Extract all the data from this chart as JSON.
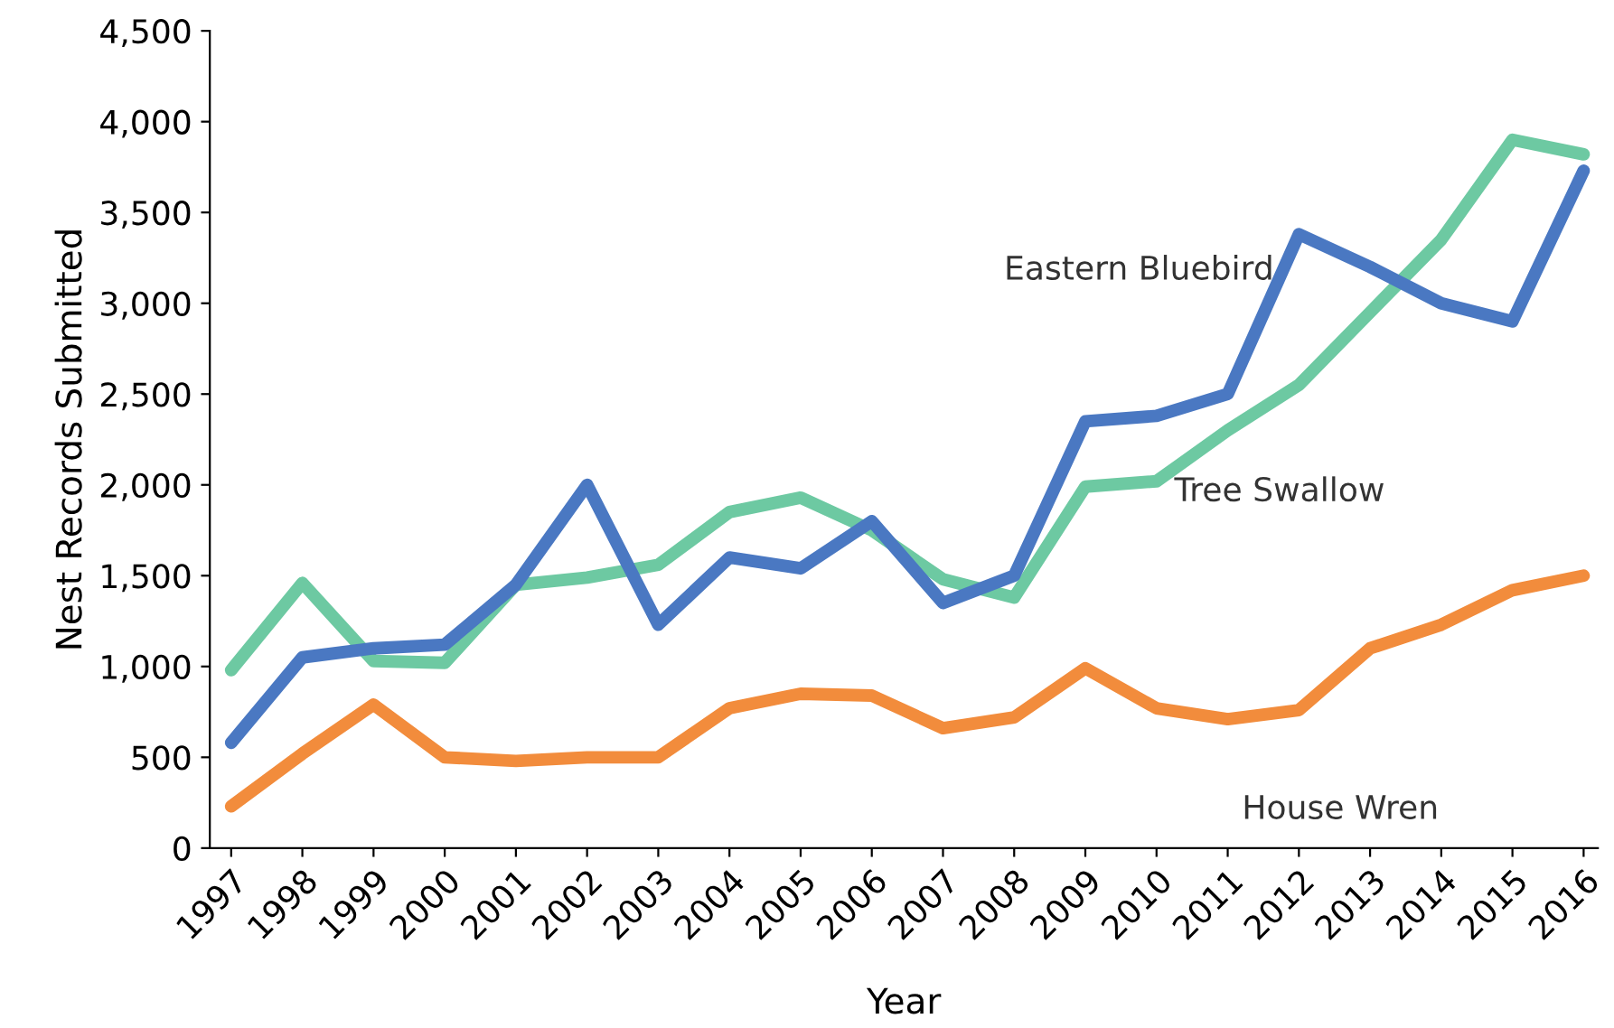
{
  "chart_data": {
    "type": "line",
    "xlabel": "Year",
    "ylabel": "Nest Records Submitted",
    "categories": [
      "1997",
      "1998",
      "1999",
      "2000",
      "2001",
      "2002",
      "2003",
      "2004",
      "2005",
      "2006",
      "2007",
      "2008",
      "2009",
      "2010",
      "2011",
      "2012",
      "2013",
      "2014",
      "2015",
      "2016"
    ],
    "ylim": [
      0,
      4500
    ],
    "yticks": [
      0,
      {
        "value": 500,
        "label": "500"
      },
      {
        "value": 1000,
        "label": "1,000"
      },
      {
        "value": 1500,
        "label": "1,500"
      },
      {
        "value": 2000,
        "label": "2,000"
      },
      {
        "value": 2500,
        "label": "2,500"
      },
      {
        "value": 3000,
        "label": "3,000"
      },
      {
        "value": 3500,
        "label": "3,500"
      },
      {
        "value": 4000,
        "label": "4,000"
      },
      {
        "value": 4500,
        "label": "4,500"
      }
    ],
    "grid": false,
    "legend": false,
    "marker": "none",
    "line_style": "solid",
    "series": [
      {
        "name": "Tree Swallow",
        "color": "#6dc9a2",
        "values": [
          980,
          1460,
          1030,
          1020,
          1450,
          1490,
          1560,
          1850,
          1930,
          1750,
          1480,
          1380,
          1990,
          2020,
          2300,
          2550,
          2950,
          3350,
          3900,
          3820
        ]
      },
      {
        "name": "Eastern Bluebird",
        "color": "#4a78c2",
        "values": [
          580,
          1050,
          1100,
          1120,
          1450,
          2000,
          1230,
          1600,
          1540,
          1800,
          1350,
          1500,
          2350,
          2380,
          2500,
          3380,
          3200,
          3000,
          2900,
          3730
        ]
      },
      {
        "name": "House Wren",
        "color": "#f28c3c",
        "values": [
          230,
          520,
          790,
          500,
          480,
          500,
          500,
          770,
          850,
          840,
          660,
          720,
          990,
          770,
          710,
          760,
          1100,
          1230,
          1420,
          1500
        ]
      }
    ]
  }
}
